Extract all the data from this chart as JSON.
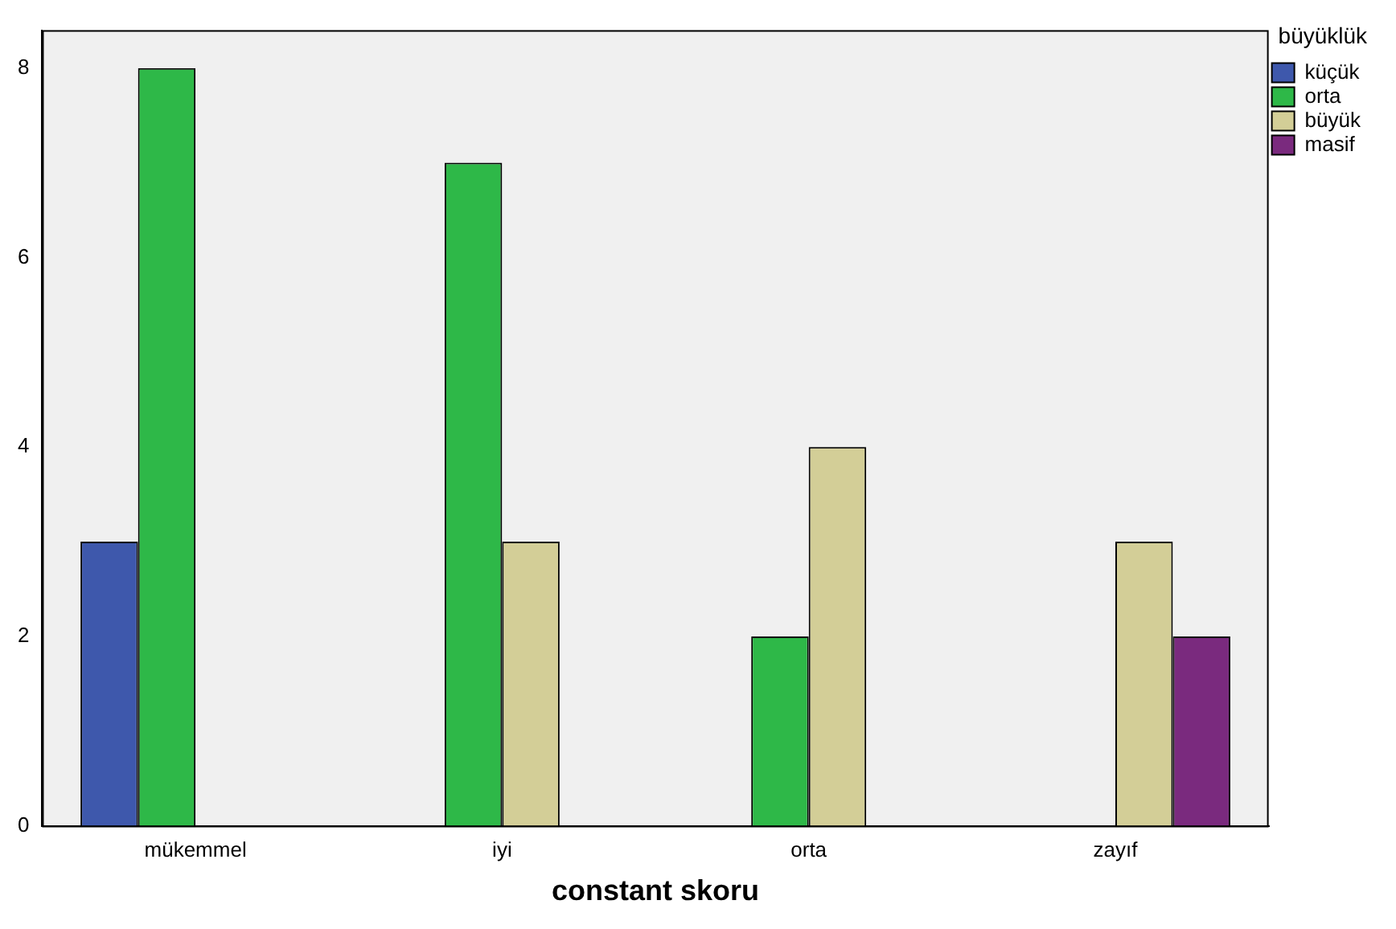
{
  "chart_data": {
    "type": "bar",
    "xlabel": "constant skoru",
    "legend_title": "büyüklük",
    "categories": [
      "mükemmel",
      "iyi",
      "orta",
      "zayıf"
    ],
    "series": [
      {
        "name": "küçük",
        "color": "#3e58ac",
        "values": [
          3,
          null,
          null,
          null
        ]
      },
      {
        "name": "orta",
        "color": "#2eb848",
        "values": [
          8,
          7,
          2,
          null
        ]
      },
      {
        "name": "büyük",
        "color": "#d3ce97",
        "values": [
          null,
          3,
          4,
          3
        ]
      },
      {
        "name": "masif",
        "color": "#7a2a7e",
        "values": [
          null,
          null,
          null,
          2
        ]
      }
    ],
    "ylim": [
      0,
      8.4
    ],
    "yticks": [
      0,
      2,
      4,
      6,
      8
    ],
    "grid": false,
    "legend": "right"
  }
}
